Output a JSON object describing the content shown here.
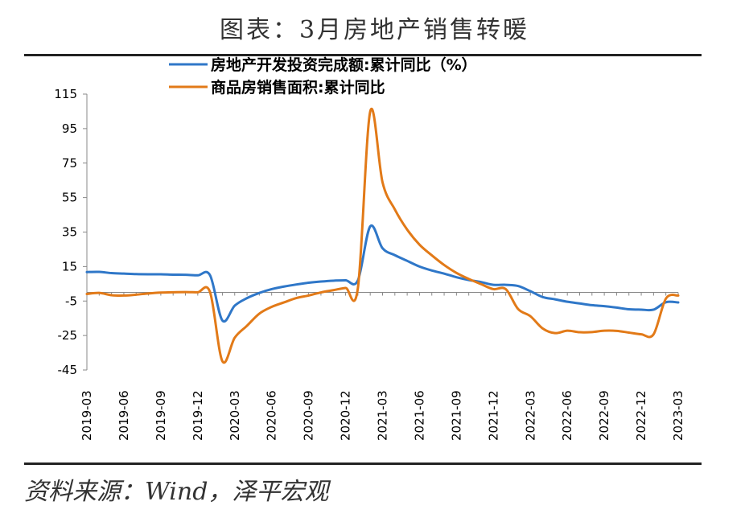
{
  "title": "图表：3月房地产销售转暖",
  "source": "资料来源：Wind，泽平宏观",
  "chart_data": {
    "type": "line",
    "ylim": [
      -45,
      115
    ],
    "yticks": [
      115,
      95,
      75,
      55,
      35,
      15,
      -5,
      -25,
      -45
    ],
    "xtick_labels": [
      "2019-03",
      "2019-06",
      "2019-09",
      "2019-12",
      "2020-03",
      "2020-06",
      "2020-09",
      "2020-12",
      "2021-03",
      "2021-06",
      "2021-09",
      "2021-12",
      "2022-03",
      "2022-06",
      "2022-09",
      "2022-12",
      "2023-03"
    ],
    "x": [
      "2019-03",
      "2019-04",
      "2019-05",
      "2019-06",
      "2019-07",
      "2019-08",
      "2019-09",
      "2019-10",
      "2019-11",
      "2019-12",
      "2020-01",
      "2020-02",
      "2020-03",
      "2020-04",
      "2020-05",
      "2020-06",
      "2020-07",
      "2020-08",
      "2020-09",
      "2020-10",
      "2020-11",
      "2020-12",
      "2021-01",
      "2021-02",
      "2021-03",
      "2021-04",
      "2021-05",
      "2021-06",
      "2021-07",
      "2021-08",
      "2021-09",
      "2021-10",
      "2021-11",
      "2021-12",
      "2022-01",
      "2022-02",
      "2022-03",
      "2022-04",
      "2022-05",
      "2022-06",
      "2022-07",
      "2022-08",
      "2022-09",
      "2022-10",
      "2022-11",
      "2022-12",
      "2023-01",
      "2023-02",
      "2023-03"
    ],
    "legend": "top-center",
    "grid": false,
    "series": [
      {
        "name": "房地产开发投资完成额:累计同比（%）",
        "color": "#2F77C8",
        "values": [
          11.8,
          11.9,
          11.2,
          10.9,
          10.6,
          10.5,
          10.5,
          10.3,
          10.2,
          9.9,
          9.9,
          -16.3,
          -7.7,
          -3.3,
          -0.3,
          1.9,
          3.4,
          4.6,
          5.6,
          6.3,
          6.8,
          7.0,
          7.0,
          38.3,
          25.6,
          21.6,
          18.3,
          15.0,
          12.7,
          10.9,
          8.8,
          7.2,
          6.0,
          4.4,
          4.4,
          3.7,
          0.7,
          -2.7,
          -4.0,
          -5.4,
          -6.4,
          -7.4,
          -8.0,
          -8.8,
          -9.8,
          -10.0,
          -10.0,
          -5.7,
          -5.8
        ]
      },
      {
        "name": "商品房销售面积:累计同比",
        "color": "#E27A18",
        "values": [
          -0.9,
          -0.3,
          -1.6,
          -1.8,
          -1.3,
          -0.6,
          -0.1,
          0.1,
          0.2,
          0.1,
          0.1,
          -39.9,
          -26.3,
          -19.3,
          -12.3,
          -8.4,
          -5.8,
          -3.3,
          -1.8,
          0.0,
          1.3,
          2.6,
          2.6,
          104.9,
          63.8,
          48.1,
          36.4,
          27.7,
          21.5,
          15.9,
          11.3,
          7.8,
          4.8,
          1.9,
          1.9,
          -9.6,
          -13.8,
          -20.9,
          -23.6,
          -22.2,
          -23.1,
          -23.0,
          -22.2,
          -22.3,
          -23.3,
          -24.3,
          -24.3,
          -3.6,
          -1.8
        ]
      }
    ]
  }
}
